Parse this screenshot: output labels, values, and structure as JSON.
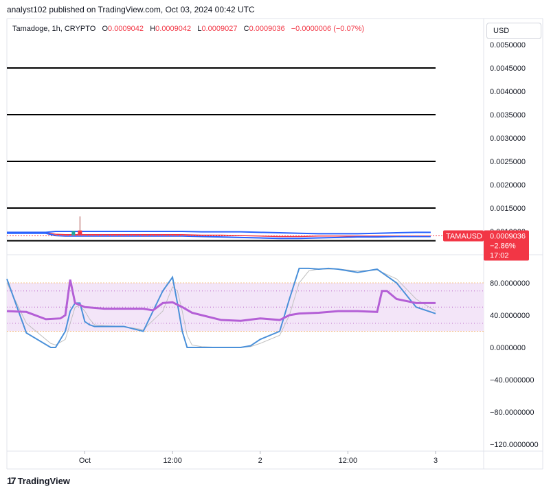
{
  "header": {
    "published": "analyst102 published on TradingView.com, Oct 03, 2024 00:42 UTC"
  },
  "legend": {
    "symbol": "Tamadoge, 1h, CRYPTO",
    "open_label": "O",
    "open": "0.0009042",
    "high_label": "H",
    "high": "0.0009042",
    "low_label": "L",
    "low": "0.0009027",
    "close_label": "C",
    "close": "0.0009036",
    "change": "−0.0000006 (−0.07%)"
  },
  "currency": "USD",
  "price_tag": {
    "ticker": "TAMAUSD",
    "price": "0.0009036",
    "change": "−2.86%",
    "countdown": "17:02",
    "color": "#f23645"
  },
  "footer": {
    "brand": "TradingView"
  },
  "colors": {
    "horizontal_lines": "#000000",
    "bollinger": "#2962ff",
    "stoch_k": "#4a90d9",
    "stoch_d": "#c0c0c0",
    "rsi": "#b45fd6",
    "rsi_band": "#f3e5f8",
    "rsi_dotted": "#9c27b0",
    "band_edge": "#f5c28a"
  },
  "chart_data": [
    {
      "type": "line",
      "title": "Tamadoge, 1h, CRYPTO",
      "ylim": [
        0.00055,
        0.0053
      ],
      "yticks": [
        "0.0050000",
        "0.0045000",
        "0.0040000",
        "0.0035000",
        "0.0030000",
        "0.0025000",
        "0.0020000",
        "0.0015000",
        "0.0010000"
      ],
      "ytick_values": [
        0.005,
        0.0045,
        0.004,
        0.0035,
        0.003,
        0.0025,
        0.002,
        0.0015,
        0.001
      ],
      "horizontal_levels": [
        0.0045,
        0.0035,
        0.0025,
        0.0015,
        0.0008
      ],
      "x": [
        0,
        4,
        8,
        10,
        12,
        16,
        20,
        24,
        28,
        32,
        36,
        40,
        44,
        48,
        52,
        56,
        60,
        64,
        68,
        72,
        76,
        80,
        84,
        87
      ],
      "series": [
        {
          "values": [
            0.00097,
            0.00097,
            0.00097,
            0.00094,
            0.00093,
            0.00093,
            0.00093,
            0.00093,
            0.00093,
            0.00093,
            0.00093,
            0.00092,
            0.00092,
            0.00091,
            0.0009,
            0.00089,
            0.00089,
            0.0009,
            0.0009,
            0.0009,
            0.0009,
            0.0009,
            0.0009,
            0.0009
          ]
        },
        {
          "values": [
            0.00098,
            0.00098,
            0.00098,
            0.001,
            0.001,
            0.001,
            0.001,
            0.001,
            0.001,
            0.001,
            0.001,
            0.00099,
            0.00099,
            0.00099,
            0.00098,
            0.00097,
            0.00096,
            0.00095,
            0.00095,
            0.00095,
            0.00096,
            0.00097,
            0.00098,
            0.00098
          ]
        },
        {
          "values": [
            0.00096,
            0.00096,
            0.00096,
            0.00091,
            0.0009,
            0.0009,
            0.0009,
            0.0009,
            0.0009,
            0.0009,
            0.0009,
            0.00089,
            0.00088,
            0.00087,
            0.00086,
            0.00085,
            0.00085,
            0.00086,
            0.00087,
            0.00088,
            0.00088,
            0.00089,
            0.00089,
            0.00089
          ]
        }
      ],
      "candle_spike": {
        "x": 15,
        "high": 0.00132,
        "low": 0.00093
      },
      "last_price": 0.0009036
    },
    {
      "type": "line",
      "ylim": [
        -127,
        107
      ],
      "yticks": [
        "80.0000000",
        "40.0000000",
        "0.0000000",
        "−40.0000000",
        "−80.0000000",
        "−120.0000000"
      ],
      "ytick_values": [
        80,
        40,
        0,
        -40,
        -80,
        -120
      ],
      "bands": {
        "upper": 80,
        "lower": 20,
        "mid_upper": 70,
        "mid": 50,
        "mid_lower": 30
      },
      "x_labels": [
        "Oct",
        "12:00",
        "2",
        "12:00",
        "3"
      ],
      "x_label_positions": [
        16,
        34,
        52,
        70,
        88
      ],
      "stoch_x": [
        0,
        4,
        9,
        10,
        12,
        13,
        14,
        15,
        16,
        17,
        18,
        20,
        24,
        28,
        32,
        34,
        35,
        36,
        37,
        38,
        40,
        44,
        48,
        50,
        52,
        56,
        58,
        60,
        62,
        64,
        66,
        68,
        72,
        76,
        80,
        84,
        88
      ],
      "stoch_k": [
        85,
        18,
        0,
        0,
        20,
        45,
        55,
        55,
        32,
        28,
        26,
        26,
        26,
        20,
        70,
        87,
        55,
        20,
        0,
        0,
        0,
        0,
        0,
        2,
        10,
        20,
        60,
        98,
        98,
        97,
        98,
        97,
        93,
        97,
        80,
        50,
        42
      ],
      "stoch_d": [
        80,
        30,
        5,
        3,
        10,
        30,
        50,
        52,
        45,
        35,
        28,
        27,
        26,
        22,
        45,
        75,
        70,
        45,
        15,
        3,
        1,
        0,
        0,
        1,
        5,
        15,
        40,
        80,
        95,
        97,
        97,
        97,
        95,
        96,
        85,
        60,
        45
      ],
      "rsi_x": [
        0,
        4,
        8,
        11,
        12,
        13,
        14,
        16,
        20,
        24,
        28,
        30,
        32,
        34,
        36,
        38,
        40,
        44,
        48,
        52,
        56,
        58,
        60,
        64,
        68,
        72,
        76,
        77,
        78,
        80,
        84,
        88
      ],
      "rsi": [
        45,
        44,
        35,
        36,
        40,
        84,
        55,
        50,
        48,
        48,
        48,
        46,
        55,
        56,
        50,
        43,
        40,
        34,
        33,
        36,
        34,
        40,
        42,
        43,
        45,
        45,
        44,
        70,
        70,
        60,
        55,
        55
      ]
    }
  ]
}
